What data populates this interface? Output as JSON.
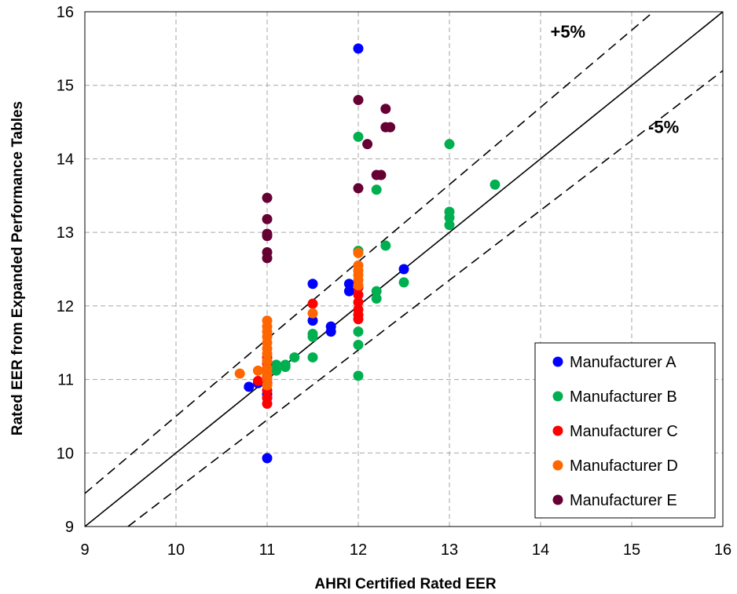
{
  "chart_data": {
    "type": "scatter",
    "xlabel": "AHRI Certified Rated EER",
    "ylabel": "Rated EER from Expanded Performance Tables",
    "xlim": [
      9,
      16
    ],
    "ylim": [
      9,
      16
    ],
    "x_ticks": [
      "9",
      "10",
      "11",
      "12",
      "13",
      "14",
      "15",
      "16"
    ],
    "y_ticks": [
      "9",
      "10",
      "11",
      "12",
      "13",
      "14",
      "15",
      "16"
    ],
    "grid": true,
    "legend_position": "bottom-right",
    "reference_lines": [
      {
        "label": "",
        "slope": 1.0,
        "style": "solid"
      },
      {
        "label": "+5%",
        "slope": 1.05,
        "style": "dashed"
      },
      {
        "label": "-5%",
        "slope": 0.95,
        "style": "dashed"
      }
    ],
    "series": [
      {
        "name": "Manufacturer A",
        "color": "#0000ff",
        "points": [
          [
            12.0,
            15.5
          ],
          [
            12.5,
            12.5
          ],
          [
            11.5,
            12.3
          ],
          [
            11.9,
            12.3
          ],
          [
            11.9,
            12.2
          ],
          [
            11.7,
            11.72
          ],
          [
            11.7,
            11.65
          ],
          [
            11.5,
            11.8
          ],
          [
            11.0,
            11.0
          ],
          [
            10.8,
            10.9
          ],
          [
            10.9,
            10.95
          ],
          [
            11.0,
            10.8
          ],
          [
            11.0,
            10.75
          ],
          [
            11.0,
            9.93
          ]
        ]
      },
      {
        "name": "Manufacturer B",
        "color": "#00b050",
        "points": [
          [
            12.0,
            14.3
          ],
          [
            13.0,
            14.2
          ],
          [
            13.5,
            13.65
          ],
          [
            12.2,
            13.58
          ],
          [
            13.0,
            13.28
          ],
          [
            13.0,
            13.2
          ],
          [
            13.0,
            13.1
          ],
          [
            12.3,
            12.82
          ],
          [
            12.0,
            12.75
          ],
          [
            12.5,
            12.32
          ],
          [
            12.2,
            12.2
          ],
          [
            12.2,
            12.1
          ],
          [
            12.0,
            11.65
          ],
          [
            12.0,
            11.47
          ],
          [
            12.0,
            11.05
          ],
          [
            11.5,
            11.62
          ],
          [
            11.5,
            11.58
          ],
          [
            11.5,
            11.3
          ],
          [
            11.3,
            11.3
          ],
          [
            11.2,
            11.2
          ],
          [
            11.2,
            11.17
          ],
          [
            11.1,
            11.2
          ],
          [
            11.1,
            11.12
          ]
        ]
      },
      {
        "name": "Manufacturer C",
        "color": "#ff0000",
        "points": [
          [
            11.5,
            12.03
          ],
          [
            12.0,
            12.25
          ],
          [
            12.0,
            12.15
          ],
          [
            12.0,
            12.05
          ],
          [
            12.0,
            11.95
          ],
          [
            12.0,
            11.88
          ],
          [
            12.0,
            11.82
          ],
          [
            11.0,
            11.3
          ],
          [
            11.0,
            11.22
          ],
          [
            11.0,
            11.15
          ],
          [
            11.0,
            11.05
          ],
          [
            11.0,
            10.95
          ],
          [
            10.9,
            10.98
          ],
          [
            11.0,
            10.85
          ],
          [
            11.0,
            10.75
          ],
          [
            11.0,
            10.67
          ]
        ]
      },
      {
        "name": "Manufacturer D",
        "color": "#ff6600",
        "points": [
          [
            12.0,
            12.72
          ],
          [
            12.0,
            12.55
          ],
          [
            12.0,
            12.48
          ],
          [
            12.0,
            12.42
          ],
          [
            12.0,
            12.35
          ],
          [
            12.0,
            12.28
          ],
          [
            11.5,
            11.9
          ],
          [
            11.0,
            11.8
          ],
          [
            11.0,
            11.72
          ],
          [
            11.0,
            11.65
          ],
          [
            11.0,
            11.58
          ],
          [
            11.0,
            11.5
          ],
          [
            11.0,
            11.42
          ],
          [
            11.0,
            11.35
          ],
          [
            11.0,
            11.25
          ],
          [
            11.0,
            11.15
          ],
          [
            11.0,
            11.08
          ],
          [
            11.0,
            11.0
          ],
          [
            11.0,
            10.92
          ],
          [
            10.9,
            11.12
          ],
          [
            10.7,
            11.08
          ]
        ]
      },
      {
        "name": "Manufacturer E",
        "color": "#660033",
        "points": [
          [
            12.0,
            14.8
          ],
          [
            12.3,
            14.68
          ],
          [
            12.3,
            14.43
          ],
          [
            12.35,
            14.43
          ],
          [
            12.1,
            14.2
          ],
          [
            12.2,
            13.78
          ],
          [
            12.25,
            13.78
          ],
          [
            12.0,
            13.6
          ],
          [
            11.0,
            13.47
          ],
          [
            11.0,
            13.18
          ],
          [
            11.0,
            12.98
          ],
          [
            11.0,
            12.95
          ],
          [
            11.0,
            12.73
          ],
          [
            11.0,
            12.65
          ]
        ]
      }
    ]
  }
}
